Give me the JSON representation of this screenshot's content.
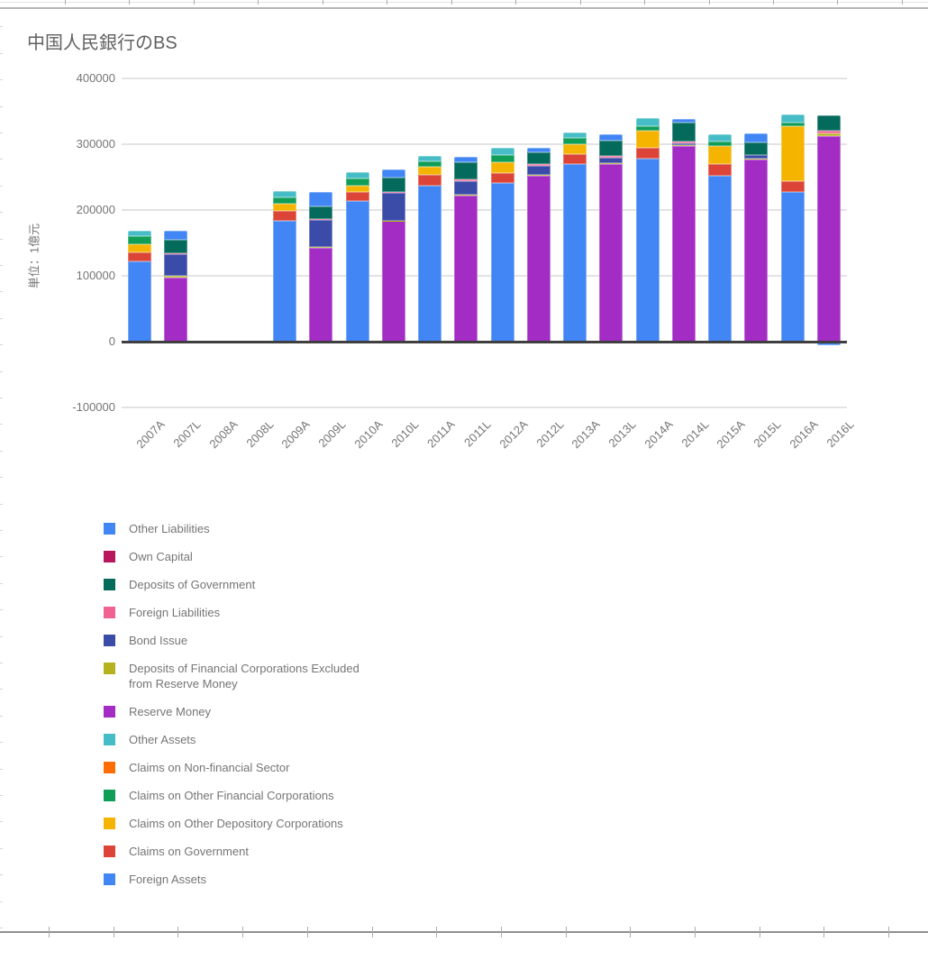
{
  "chart_data": {
    "type": "bar",
    "stacked": true,
    "title": "中国人民銀行のBS",
    "ylabel": "単位：1億元",
    "xlabel": "",
    "y_ticks": [
      400000,
      300000,
      200000,
      100000,
      0,
      -100000
    ],
    "ylim": [
      -100000,
      400000
    ],
    "grid": true,
    "legend_position": "bottom-left",
    "categories": [
      "2007A",
      "2007L",
      "2008A",
      "2008L",
      "2009A",
      "2009L",
      "2010A",
      "2010L",
      "2011A",
      "2011L",
      "2012A",
      "2012L",
      "2013A",
      "2013L",
      "2014A",
      "2014L",
      "2015A",
      "2015L",
      "2016A",
      "2016L"
    ],
    "series": [
      {
        "name": "Foreign Assets",
        "color": "#4285F4",
        "values": [
          122500,
          0,
          0,
          0,
          183500,
          0,
          214000,
          0,
          237400,
          0,
          241500,
          0,
          270000,
          0,
          278100,
          0,
          252100,
          0,
          227900,
          0
        ]
      },
      {
        "name": "Claims on Government",
        "color": "#DB4437",
        "values": [
          13700,
          0,
          0,
          0,
          14600,
          0,
          12800,
          0,
          16000,
          0,
          15100,
          0,
          15000,
          0,
          16000,
          0,
          17400,
          0,
          16400,
          0
        ]
      },
      {
        "name": "Claims on Other Depository Corporations",
        "color": "#F4B400",
        "values": [
          11400,
          0,
          0,
          0,
          11400,
          0,
          10000,
          0,
          11900,
          0,
          16000,
          0,
          14500,
          0,
          26400,
          0,
          27400,
          0,
          83100,
          0
        ]
      },
      {
        "name": "Claims on Other Financial Corporations",
        "color": "#0F9D58",
        "values": [
          12300,
          0,
          0,
          0,
          9500,
          0,
          10500,
          0,
          8200,
          0,
          10500,
          0,
          10500,
          0,
          6800,
          0,
          6800,
          0,
          5900,
          0
        ]
      },
      {
        "name": "Claims on Non-financial Sector",
        "color": "#FF6D00",
        "values": [
          0,
          0,
          0,
          0,
          0,
          0,
          0,
          0,
          0,
          0,
          0,
          0,
          0,
          0,
          0,
          0,
          0,
          0,
          0,
          0
        ]
      },
      {
        "name": "Other Assets",
        "color": "#46BDC6",
        "values": [
          8200,
          0,
          0,
          0,
          9100,
          0,
          10400,
          0,
          8200,
          0,
          11000,
          0,
          8000,
          0,
          12700,
          0,
          11400,
          0,
          12300,
          0
        ]
      },
      {
        "name": "Reserve Money",
        "color": "#A32CC4",
        "values": [
          0,
          97300,
          0,
          0,
          0,
          142500,
          0,
          183000,
          0,
          222300,
          0,
          252100,
          0,
          269400,
          0,
          296800,
          0,
          276300,
          0,
          311900
        ]
      },
      {
        "name": "Deposits of Financial Corporations Excluded from Reserve Money",
        "color": "#B5B21E",
        "values": [
          0,
          2700,
          0,
          0,
          0,
          1000,
          0,
          1000,
          0,
          1500,
          0,
          2000,
          0,
          2000,
          0,
          1800,
          0,
          2200,
          0,
          4500
        ]
      },
      {
        "name": "Bond Issue",
        "color": "#3B4CA8",
        "values": [
          0,
          32900,
          0,
          0,
          0,
          42000,
          0,
          42500,
          0,
          20600,
          0,
          13000,
          0,
          7800,
          0,
          2500,
          0,
          5500,
          0,
          0
        ]
      },
      {
        "name": "Foreign Liabilities",
        "color": "#F06292",
        "values": [
          0,
          900,
          0,
          0,
          0,
          800,
          0,
          700,
          0,
          2700,
          0,
          2300,
          0,
          2500,
          0,
          3400,
          0,
          0,
          0,
          4100
        ]
      },
      {
        "name": "Deposits of Government",
        "color": "#046A5C",
        "values": [
          0,
          20500,
          0,
          0,
          0,
          18600,
          0,
          21900,
          0,
          26000,
          0,
          18500,
          0,
          24200,
          0,
          28800,
          0,
          18300,
          0,
          22900
        ]
      },
      {
        "name": "Own Capital",
        "color": "#B8175C",
        "values": [
          0,
          0,
          0,
          0,
          0,
          0,
          0,
          0,
          0,
          0,
          0,
          0,
          0,
          0,
          0,
          0,
          0,
          0,
          0,
          0
        ]
      },
      {
        "name": "Other Liabilities",
        "color": "#4285F4",
        "values": [
          0,
          13700,
          0,
          0,
          0,
          22500,
          0,
          12300,
          0,
          7400,
          0,
          6000,
          0,
          9200,
          0,
          5500,
          0,
          14600,
          0,
          -5000
        ]
      }
    ],
    "legend_items": [
      {
        "label": "Other Liabilities",
        "color": "#4285F4"
      },
      {
        "label": "Own Capital",
        "color": "#B8175C"
      },
      {
        "label": "Deposits of Government",
        "color": "#046A5C"
      },
      {
        "label": "Foreign Liabilities",
        "color": "#F06292"
      },
      {
        "label": "Bond Issue",
        "color": "#3B4CA8"
      },
      {
        "label": "Deposits of Financial Corporations Excluded\nfrom Reserve Money",
        "color": "#B5B21E"
      },
      {
        "label": "Reserve Money",
        "color": "#A32CC4"
      },
      {
        "label": "Other Assets",
        "color": "#46BDC6"
      },
      {
        "label": "Claims on Non-financial Sector",
        "color": "#FF6D00"
      },
      {
        "label": "Claims on Other Financial Corporations",
        "color": "#0F9D58"
      },
      {
        "label": "Claims on Other Depository Corporations",
        "color": "#F4B400"
      },
      {
        "label": "Claims on Government",
        "color": "#DB4437"
      },
      {
        "label": "Foreign Assets",
        "color": "#4285F4"
      }
    ]
  }
}
